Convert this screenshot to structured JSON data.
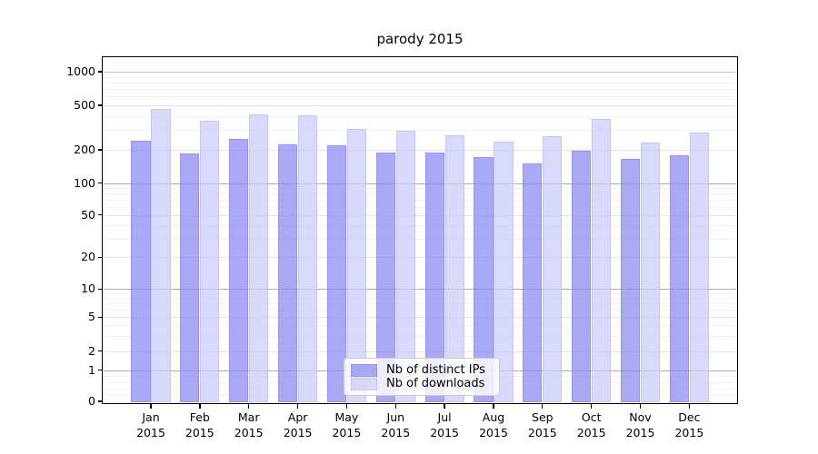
{
  "chart": {
    "title": "parody 2015",
    "legend": [
      "Nb of distinct IPs",
      "Nb of downloads"
    ]
  },
  "chart_data": {
    "type": "bar",
    "title": "parody 2015",
    "categories": [
      "Jan 2015",
      "Feb 2015",
      "Mar 2015",
      "Apr 2015",
      "May 2015",
      "Jun 2015",
      "Jul 2015",
      "Aug 2015",
      "Sep 2015",
      "Oct 2015",
      "Nov 2015",
      "Dec 2015"
    ],
    "series": [
      {
        "name": "Nb of distinct IPs",
        "color": "#a9a9f5",
        "values": [
          240,
          186,
          250,
          225,
          219,
          190,
          188,
          172,
          152,
          198,
          165,
          180
        ]
      },
      {
        "name": "Nb of downloads",
        "color": "#d9d9f8",
        "values": [
          462,
          366,
          412,
          410,
          305,
          295,
          270,
          235,
          265,
          375,
          233,
          285
        ]
      }
    ],
    "xlabel": "",
    "ylabel": "",
    "yscale": "symlog",
    "yticks": [
      0,
      1,
      2,
      5,
      10,
      20,
      50,
      100,
      200,
      500,
      1000
    ],
    "ylim": [
      0,
      1400
    ],
    "grid": true,
    "legend_position": "lower center"
  }
}
